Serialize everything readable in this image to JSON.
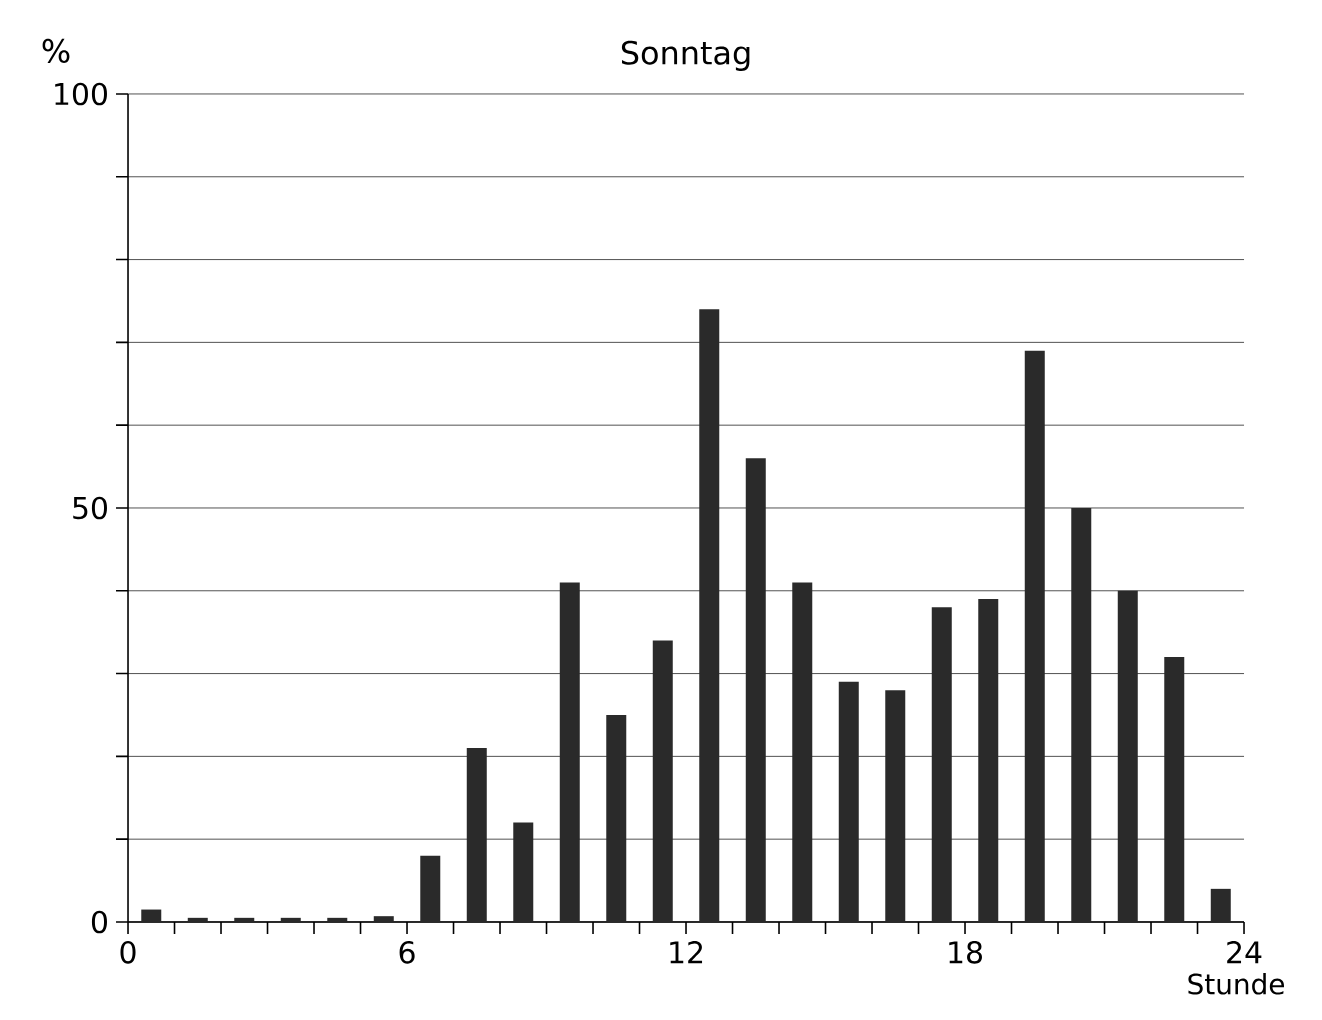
{
  "chart_data": {
    "type": "bar",
    "title": "Sonntag",
    "xlabel": "Stunde",
    "ylabel": "%",
    "x": [
      0.5,
      1.5,
      2.5,
      3.5,
      4.5,
      5.5,
      6.5,
      7.5,
      8.5,
      9.5,
      10.5,
      11.5,
      12.5,
      13.5,
      14.5,
      15.5,
      16.5,
      17.5,
      18.5,
      19.5,
      20.5,
      21.5,
      22.5,
      23.5
    ],
    "values": [
      1.5,
      0.5,
      0.5,
      0.5,
      0.5,
      0.7,
      8,
      21,
      12,
      41,
      25,
      34,
      74,
      56,
      41,
      29,
      28,
      38,
      39,
      69,
      50,
      40,
      32,
      4
    ],
    "color": "#2a2a2a",
    "xlim": [
      0,
      24
    ],
    "xticks": [
      0,
      {
        "value": 1,
        "label": null
      },
      {
        "value": 2,
        "label": null
      },
      {
        "value": 3,
        "label": null
      },
      {
        "value": 4,
        "label": null
      },
      {
        "value": 5,
        "label": null
      },
      6,
      {
        "value": 7,
        "label": null
      },
      {
        "value": 8,
        "label": null
      },
      {
        "value": 9,
        "label": null
      },
      {
        "value": 10,
        "label": null
      },
      {
        "value": 11,
        "label": null
      },
      12,
      {
        "value": 13,
        "label": null
      },
      {
        "value": 14,
        "label": null
      },
      {
        "value": 15,
        "label": null
      },
      {
        "value": 16,
        "label": null
      },
      {
        "value": 17,
        "label": null
      },
      18,
      {
        "value": 19,
        "label": null
      },
      {
        "value": 20,
        "label": null
      },
      {
        "value": 21,
        "label": null
      },
      {
        "value": 22,
        "label": null
      },
      {
        "value": 23,
        "label": null
      },
      24
    ],
    "ylim": [
      0,
      100
    ],
    "yticks": [
      0,
      {
        "value": 10,
        "label": null
      },
      {
        "value": 20,
        "label": null
      },
      {
        "value": 30,
        "label": null
      },
      {
        "value": 40,
        "label": null
      },
      50,
      {
        "value": 60,
        "label": null
      },
      {
        "value": 70,
        "label": null
      },
      {
        "value": 80,
        "label": null
      },
      {
        "value": 90,
        "label": null
      },
      100
    ],
    "grid": "y"
  }
}
